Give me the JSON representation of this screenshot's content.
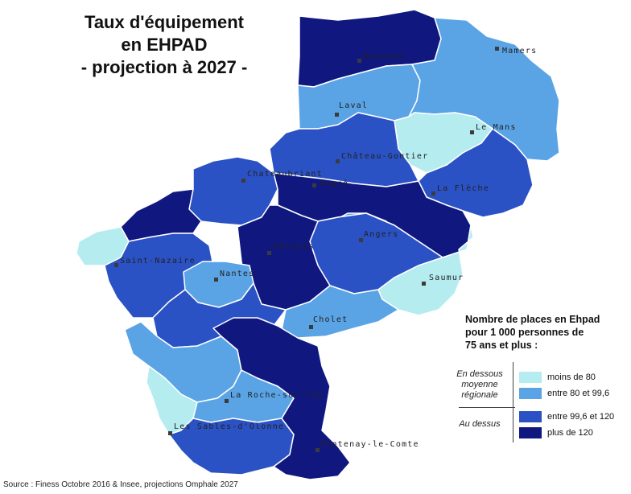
{
  "title": {
    "line1": "Taux d'équipement",
    "line2": "en EHPAD",
    "line3": "- projection à 2027 -"
  },
  "colors": {
    "very_light": "#b4ecf0",
    "light": "#5aa4e6",
    "medium": "#2b52c4",
    "dark": "#101880",
    "border": "#ffffff"
  },
  "cities": {
    "mayenne": "Mayenne",
    "mamers": "Mamers",
    "laval": "Laval",
    "le_mans": "Le Mans",
    "chateau_gontier": "Château-Gontier",
    "chateaubriant": "Chateaubriant",
    "segre": "Segré",
    "la_fleche": "La Flèche",
    "angers": "Angers",
    "ancenis": "Ancenis",
    "saint_nazaire": "Saint-Nazaire",
    "nantes": "Nantes",
    "saumur": "Saumur",
    "cholet": "Cholet",
    "la_roche": "La Roche-sur-Yon",
    "les_sables": "Les Sables-d'Olonne",
    "fontenay": "Fontenay-le-Comte"
  },
  "legend": {
    "title_line1": "Nombre de places en Ehpad",
    "title_line2": "pour 1 000 personnes de",
    "title_line3": "75 ans et plus :",
    "group_below_line1": "En dessous",
    "group_below_line2": "moyenne",
    "group_below_line3": "régionale",
    "group_above": "Au dessus",
    "items": [
      {
        "label": "moins de 80",
        "color": "#b4ecf0"
      },
      {
        "label": "entre 80 et 99,6",
        "color": "#5aa4e6"
      },
      {
        "label": "entre 99,6 et 120",
        "color": "#2b52c4"
      },
      {
        "label": "plus de 120",
        "color": "#101880"
      }
    ]
  },
  "source": "Source : Finess Octobre 2016 & Insee, projections Omphale 2027"
}
